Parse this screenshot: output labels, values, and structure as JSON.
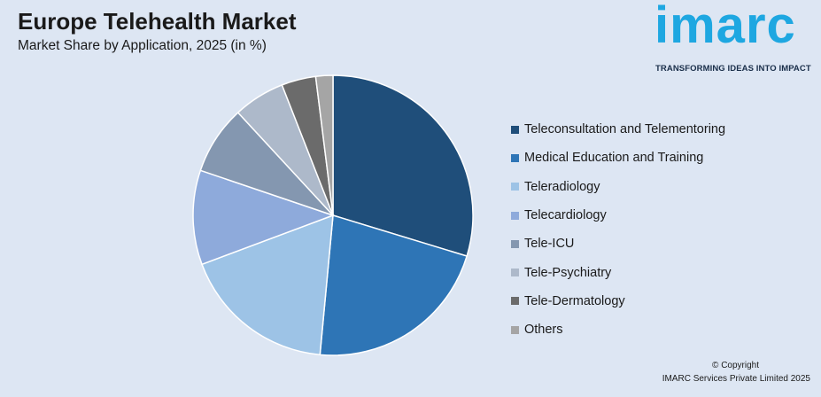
{
  "header": {
    "title": "Europe Telehealth Market",
    "subtitle": "Market Share by Application, 2025 (in %)"
  },
  "logo": {
    "word": "imarc",
    "tagline": "TRANSFORMING IDEAS INTO IMPACT"
  },
  "footer": {
    "copyright": "© Copyright",
    "company": "IMARC Services Private Limited 2025"
  },
  "chart_data": {
    "type": "pie",
    "title": "Europe Telehealth Market",
    "subtitle": "Market Share by Application, 2025 (in %)",
    "legend_position": "right",
    "categories": [
      "Teleconsultation and Telementoring",
      "Medical Education and Training",
      "Teleradiology",
      "Telecardiology",
      "Tele-ICU",
      "Tele-Psychiatry",
      "Tele-Dermatology",
      "Others"
    ],
    "values": [
      30,
      22,
      18,
      11,
      8,
      6,
      4,
      2
    ],
    "colors": [
      "#1f4e7a",
      "#2e75b6",
      "#9dc3e6",
      "#8eaadb",
      "#8497b0",
      "#adb9ca",
      "#6b6b6b",
      "#a5a5a5"
    ]
  }
}
